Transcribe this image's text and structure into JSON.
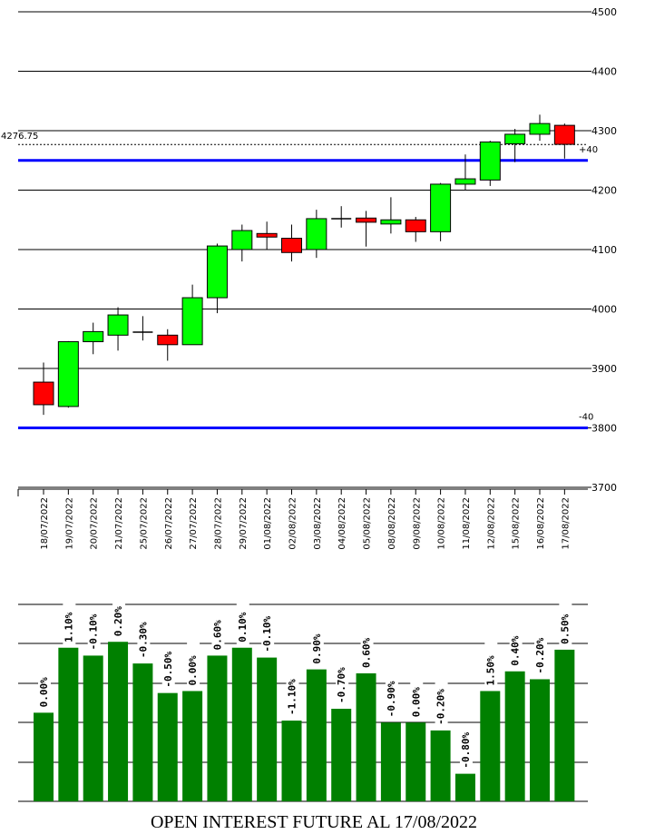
{
  "chart_data": [
    {
      "type": "candlestick",
      "categories": [
        "18/07/2022",
        "19/07/2022",
        "20/07/2022",
        "21/07/2022",
        "25/07/2022",
        "26/07/2022",
        "27/07/2022",
        "28/07/2022",
        "29/07/2022",
        "01/08/2022",
        "02/08/2022",
        "03/08/2022",
        "04/08/2022",
        "05/08/2022",
        "08/08/2022",
        "09/08/2022",
        "10/08/2022",
        "11/08/2022",
        "12/08/2022",
        "15/08/2022",
        "16/08/2022",
        "17/08/2022"
      ],
      "candles": [
        {
          "open": 3877,
          "high": 3910,
          "low": 3822,
          "close": 3839
        },
        {
          "open": 3836,
          "high": 3946,
          "low": 3834,
          "close": 3945
        },
        {
          "open": 3945,
          "high": 3977,
          "low": 3924,
          "close": 3962
        },
        {
          "open": 3956,
          "high": 4003,
          "low": 3930,
          "close": 3990
        },
        {
          "open": 3961,
          "high": 3988,
          "low": 3947,
          "close": 3960
        },
        {
          "open": 3956,
          "high": 3966,
          "low": 3913,
          "close": 3940
        },
        {
          "open": 3940,
          "high": 4041,
          "low": 3940,
          "close": 4019
        },
        {
          "open": 4019,
          "high": 4110,
          "low": 3993,
          "close": 4106
        },
        {
          "open": 4100,
          "high": 4142,
          "low": 4080,
          "close": 4132
        },
        {
          "open": 4127,
          "high": 4147,
          "low": 4100,
          "close": 4121
        },
        {
          "open": 4119,
          "high": 4142,
          "low": 4080,
          "close": 4095
        },
        {
          "open": 4100,
          "high": 4167,
          "low": 4086,
          "close": 4152
        },
        {
          "open": 4152,
          "high": 4173,
          "low": 4137,
          "close": 4152
        },
        {
          "open": 4153,
          "high": 4165,
          "low": 4105,
          "close": 4146
        },
        {
          "open": 4143,
          "high": 4188,
          "low": 4127,
          "close": 4150
        },
        {
          "open": 4150,
          "high": 4155,
          "low": 4113,
          "close": 4130
        },
        {
          "open": 4130,
          "high": 4212,
          "low": 4114,
          "close": 4210
        },
        {
          "open": 4210,
          "high": 4260,
          "low": 4200,
          "close": 4219
        },
        {
          "open": 4217,
          "high": 4283,
          "low": 4207,
          "close": 4281
        },
        {
          "open": 4278,
          "high": 4303,
          "low": 4247,
          "close": 4294
        },
        {
          "open": 4294,
          "high": 4327,
          "low": 4283,
          "close": 4312
        },
        {
          "open": 4309,
          "high": 4312,
          "low": 4253,
          "close": 4277
        }
      ],
      "colors": {
        "up": "#00ff00",
        "down": "#ff0000",
        "border": "#000000",
        "band": "#0000ff"
      },
      "yticks": [
        3700,
        3800,
        3900,
        4000,
        4100,
        4200,
        4300,
        4400,
        4500
      ],
      "ylim": [
        3700,
        4500
      ],
      "grid": true,
      "last_price": 4276.75,
      "last_price_label": "4276.75",
      "upper_band": 4250,
      "lower_band": 3800,
      "upper_band_label": "+40",
      "lower_band_label": "-40"
    },
    {
      "type": "bar",
      "title": "OPEN INTEREST FUTURE AL 17/08/2022",
      "values": [
        0.45,
        0.78,
        0.74,
        0.81,
        0.7,
        0.55,
        0.56,
        0.74,
        0.78,
        0.73,
        0.41,
        0.67,
        0.47,
        0.65,
        0.4,
        0.4,
        0.36,
        0.14,
        0.56,
        0.66,
        0.62,
        0.77
      ],
      "value_labels": [
        "0.00%",
        "1.10%",
        "-0.10%",
        "0.20%",
        "-0.30%",
        "-0.50%",
        "0.00%",
        "0.60%",
        "0.10%",
        "-0.10%",
        "-1.10%",
        "0.90%",
        "-0.70%",
        "0.60%",
        "-0.90%",
        "0.00%",
        "-0.20%",
        "-0.80%",
        "1.50%",
        "0.40%",
        "-0.20%",
        "0.50%"
      ],
      "color": "#008000",
      "grid": true
    }
  ]
}
